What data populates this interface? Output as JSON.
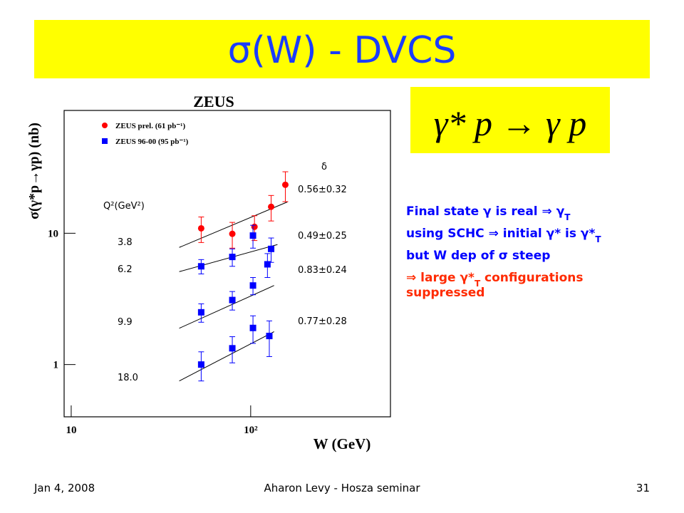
{
  "slide": {
    "title": "σ(W) - DVCS",
    "reaction": "γ* p → γ p",
    "bullets": [
      {
        "color": "#0000ff",
        "parts": [
          "Final state γ is real ⇒ γ",
          "T"
        ]
      },
      {
        "color": "#0000ff",
        "parts": [
          "using SCHC ⇒ initial γ* is γ*",
          "T"
        ]
      },
      {
        "color": "#0000ff",
        "parts": [
          "but W dep of σ steep"
        ]
      },
      {
        "color": "#ff2a00",
        "parts": [
          "⇒ large γ*",
          "T",
          " configurations"
        ]
      },
      {
        "color": "#ff2a00",
        "parts": [
          "suppressed"
        ]
      }
    ],
    "footer": {
      "date": "Jan 4, 2008",
      "center": "Aharon Levy - Hosza seminar",
      "page": "31"
    }
  },
  "chart_data": {
    "type": "scatter",
    "title": "ZEUS",
    "x_label": "W (GeV)",
    "y_label": "σ(γ*p→γp) (nb)",
    "log_x": true,
    "log_y": true,
    "xlim": [
      9.3,
      590
    ],
    "ylim": [
      0.41,
      83
    ],
    "xticks": [
      10,
      {
        "value": 100,
        "label": "10²"
      }
    ],
    "yticks": [
      1,
      10
    ],
    "series": [
      {
        "name": "ZEUS prel. (61 pb⁻¹)",
        "color": "#ff0000",
        "marker": "circle",
        "x": [
          53,
          79,
          105,
          130,
          156
        ],
        "values": [
          10.9,
          9.9,
          11.2,
          15.9,
          23.4
        ],
        "errors": [
          2.4,
          2.2,
          2.4,
          3.5,
          6
        ]
      },
      {
        "name": "ZEUS 96-00 (95 pb⁻¹)",
        "color": "#0000ff",
        "marker": "square",
        "x": [
          53,
          79,
          103,
          124,
          130,
          53,
          79,
          103,
          53,
          79,
          103,
          127
        ],
        "values": [
          5.6,
          6.6,
          9.6,
          5.8,
          7.6,
          2.5,
          3.1,
          4.0,
          1.0,
          1.33,
          1.9,
          1.65
        ],
        "errors": [
          0.7,
          1.0,
          1.9,
          1.2,
          1.6,
          0.4,
          0.5,
          0.6,
          0.25,
          0.3,
          0.45,
          0.5
        ]
      }
    ],
    "fit_lines": [
      {
        "x": [
          40,
          160
        ],
        "values": [
          7.8,
          17.3
        ]
      },
      {
        "x": [
          40,
          141
        ],
        "values": [
          5.1,
          8.2
        ]
      },
      {
        "x": [
          40,
          135
        ],
        "values": [
          1.89,
          4.0
        ]
      },
      {
        "x": [
          40,
          135
        ],
        "values": [
          0.75,
          1.78
        ]
      }
    ],
    "annotations": [
      "δ",
      "0.56±0.32",
      "0.49±0.25",
      "0.83±0.24",
      "0.77±0.28",
      "Q²(GeV²)",
      "3.8",
      "6.2",
      "9.9",
      "18.0"
    ]
  }
}
